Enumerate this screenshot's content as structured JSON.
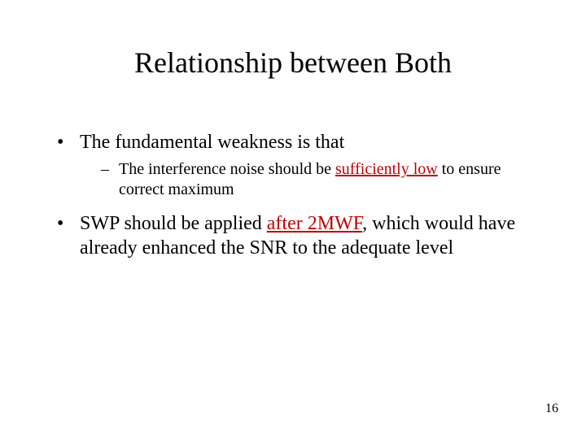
{
  "title": "Relationship between Both",
  "bullets": {
    "b1": {
      "text_pre": "The fundamental weakness is that",
      "sub1_pre": "The interference noise should be ",
      "sub1_hl": "sufficiently low",
      "sub1_post": " to ensure correct maximum"
    },
    "b2": {
      "pre": "SWP should be applied ",
      "hl": "after 2MWF",
      "post": ", which would have already enhanced the SNR to the adequate level"
    }
  },
  "page_number": "16",
  "colors": {
    "text": "#000000",
    "highlight": "#c00000",
    "background": "#ffffff"
  },
  "fonts": {
    "title_size_pt": 36,
    "body_size_pt": 24,
    "sub_size_pt": 20,
    "pageno_size_pt": 16,
    "family": "Times New Roman"
  }
}
